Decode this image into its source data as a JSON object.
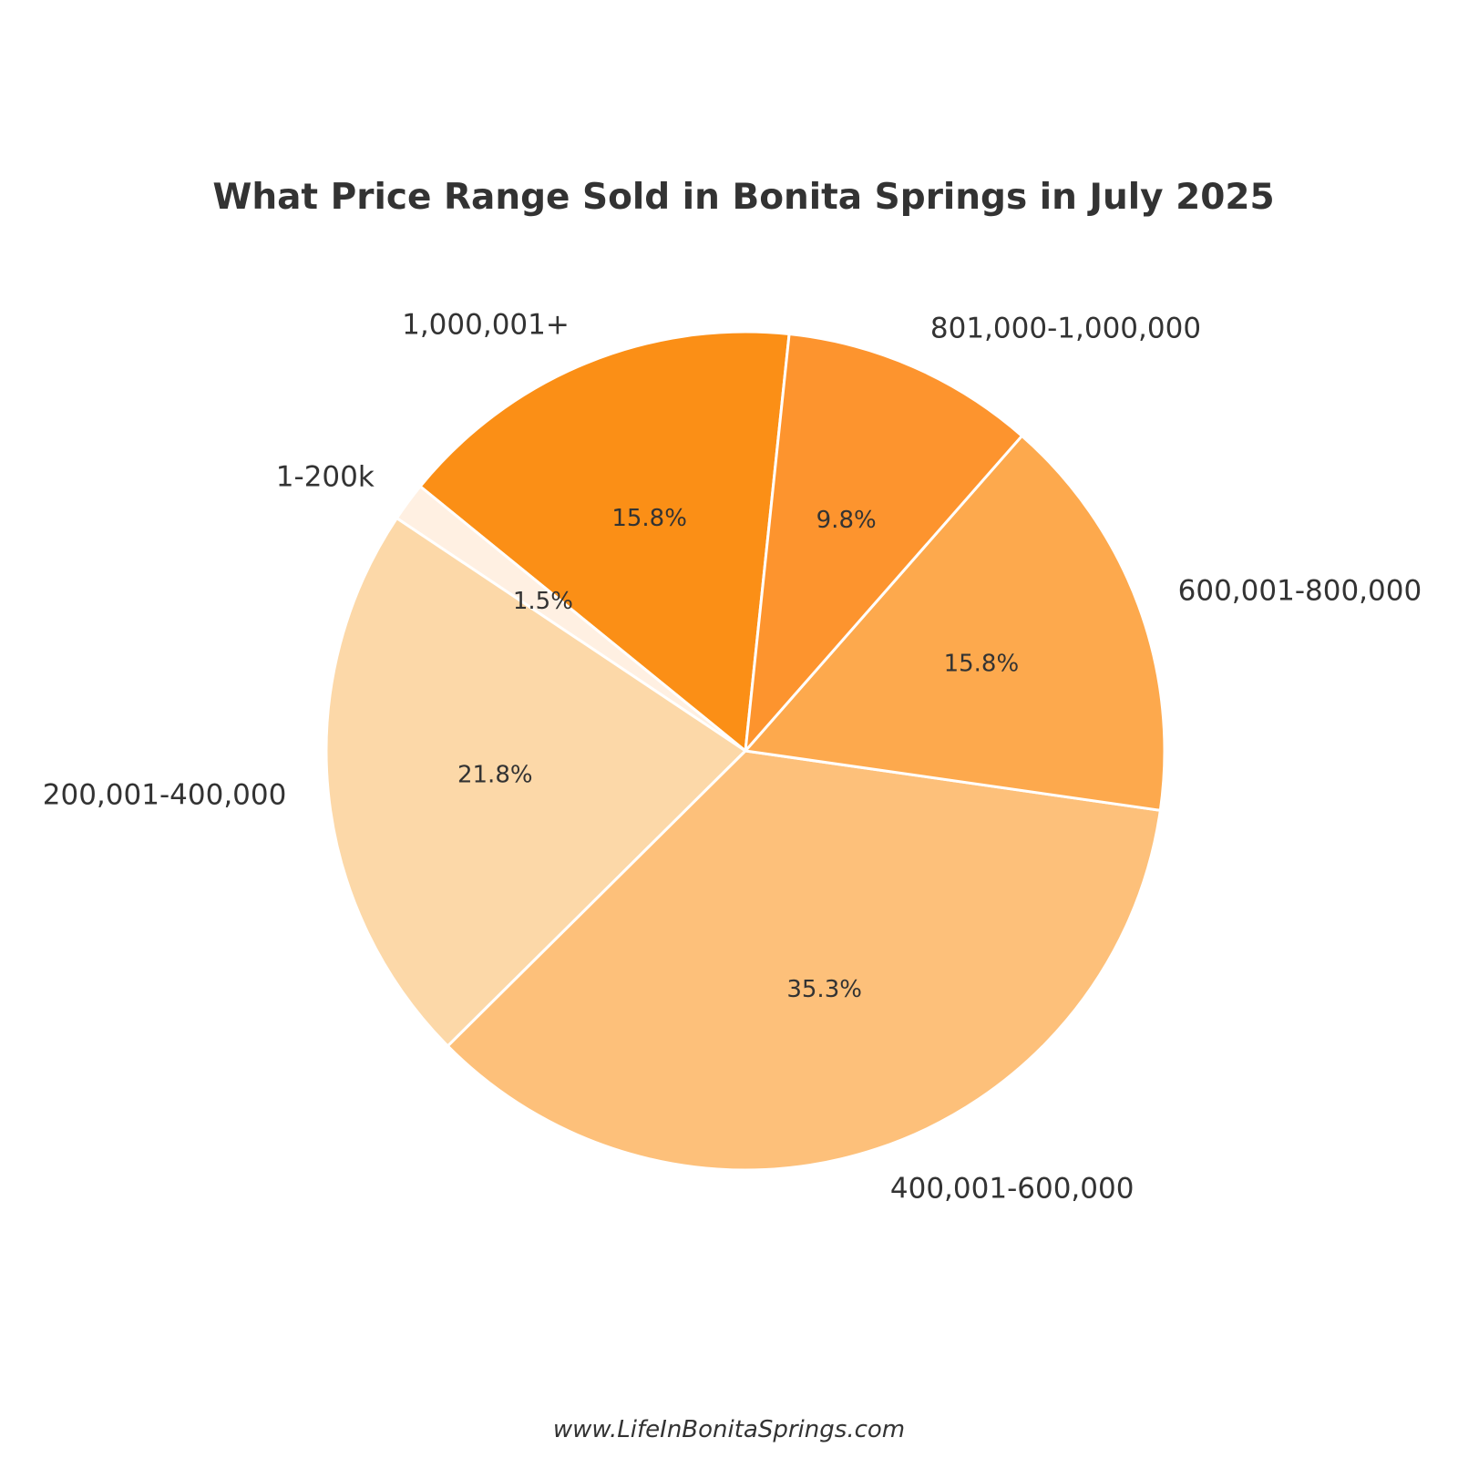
{
  "chart_data": {
    "type": "pie",
    "title": "What Price Range Sold in Bonita Springs in July 2025",
    "categories": [
      "1,000,001+",
      "1-200k",
      "200,001-400,000",
      "400,001-600,000",
      "600,001-800,000",
      "801,000-1,000,000"
    ],
    "values": [
      15.8,
      1.5,
      21.8,
      35.3,
      15.8,
      9.8
    ],
    "value_labels": [
      "15.8%",
      "1.5%",
      "21.8%",
      "35.3%",
      "15.8%",
      "9.8%"
    ],
    "colors": [
      "#fb8f16",
      "#fff0e2",
      "#fcd8a8",
      "#fdc07a",
      "#fda94d",
      "#fd942e"
    ],
    "start_angle_deg": 84,
    "direction": "counterclockwise",
    "slice_edge_color": "#ffffff"
  },
  "footer": {
    "text": "www.LifeInBonitaSprings.com"
  }
}
